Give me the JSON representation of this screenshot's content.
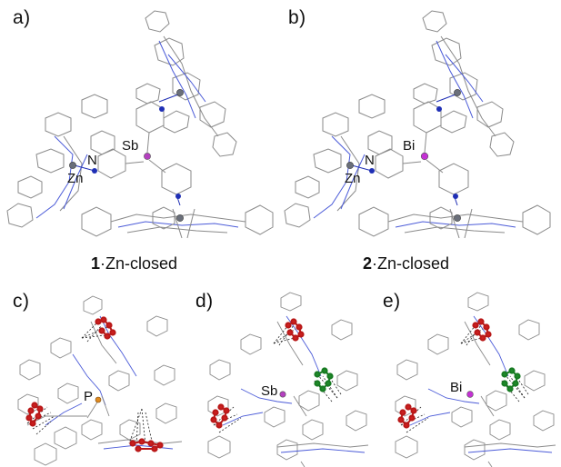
{
  "panels": [
    {
      "letter": "a)",
      "central_atom": "Sb",
      "nitrogen_label": "N",
      "zinc_label": "Zn",
      "caption_number": "1",
      "caption_text": "·Zn-closed",
      "central_color": "#b43fbf"
    },
    {
      "letter": "b)",
      "central_atom": "Bi",
      "nitrogen_label": "N",
      "zinc_label": "Zn",
      "caption_number": "2",
      "caption_text": "·Zn-closed",
      "central_color": "#c431d4"
    },
    {
      "letter": "c)",
      "central_atom": "P",
      "central_color": "#e08a1e",
      "highlight_colors": [
        "#cc1f1f"
      ]
    },
    {
      "letter": "d)",
      "central_atom": "Sb",
      "central_color": "#b43fbf",
      "highlight_colors": [
        "#cc1f1f",
        "#1f8a2a"
      ]
    },
    {
      "letter": "e)",
      "central_atom": "Bi",
      "central_color": "#c431d4",
      "highlight_colors": [
        "#cc1f1f",
        "#1f8a2a"
      ]
    }
  ],
  "colors": {
    "bond": "#8a8a8a",
    "nitrogen": "#1f2fb5",
    "zinc": "#6a6f7a",
    "porphyrin_n": "#4b5bd8"
  }
}
